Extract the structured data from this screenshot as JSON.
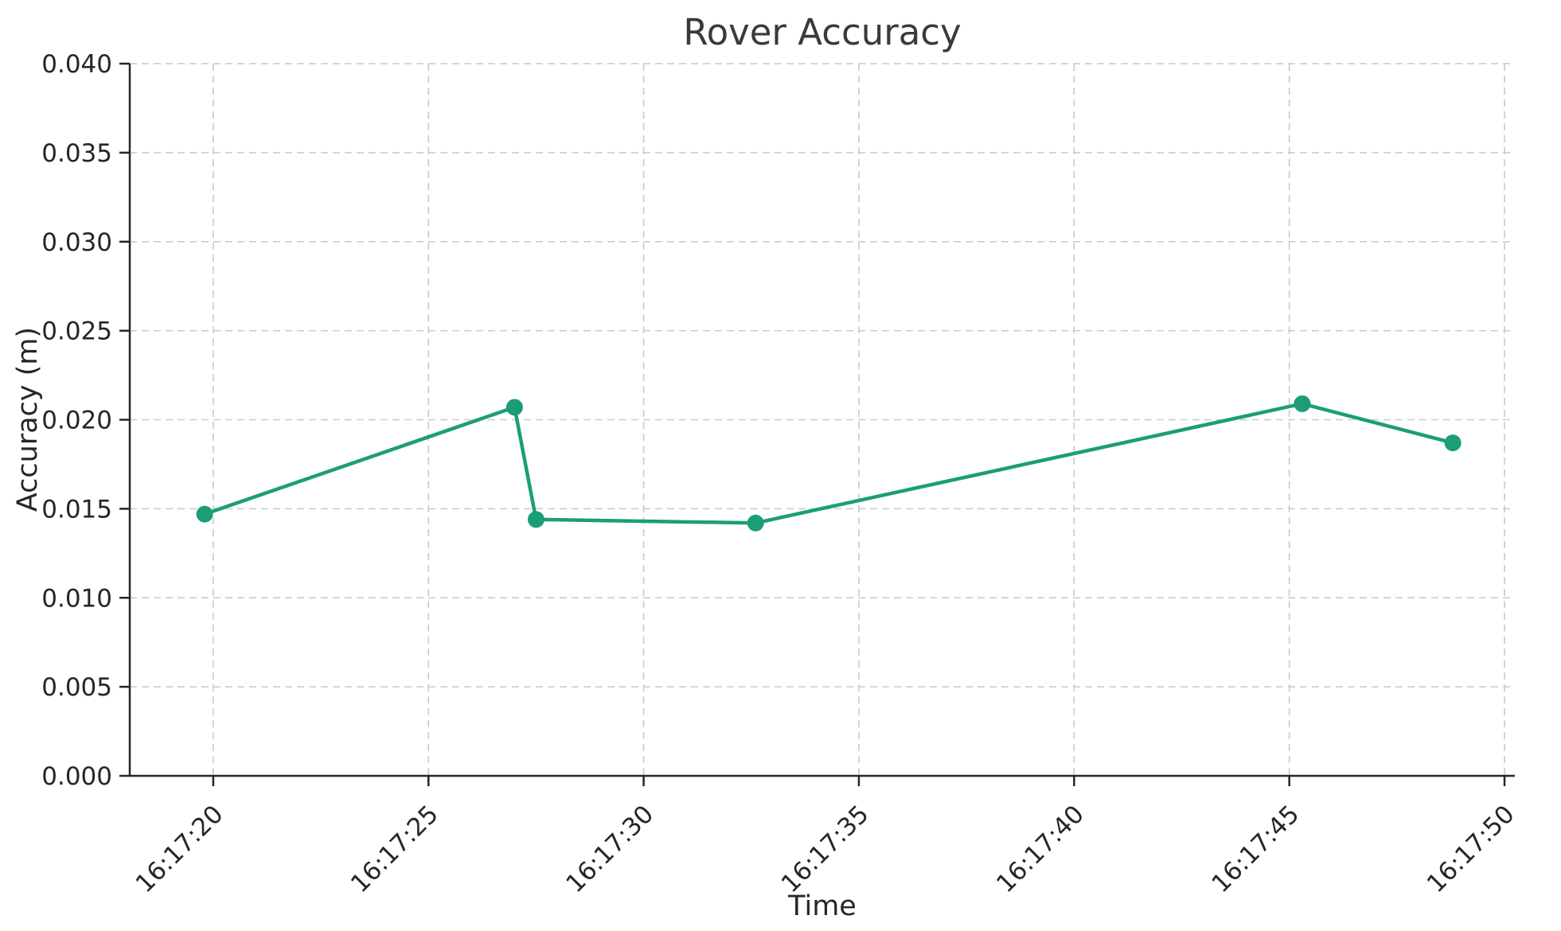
{
  "chart_data": {
    "type": "line",
    "title": "Rover Accuracy",
    "xlabel": "Time",
    "ylabel": "Accuracy (m)",
    "legend_position": "none",
    "grid": true,
    "grid_style": "dashed",
    "ylim": [
      0.0,
      0.04
    ],
    "y_ticks": [
      0.0,
      0.005,
      0.01,
      0.015,
      0.02,
      0.025,
      0.03,
      0.035,
      0.04
    ],
    "y_tick_decimals": 3,
    "xlim_seconds": [
      18.06,
      50.24
    ],
    "x_ticks": [
      {
        "label": "16:17:20",
        "seconds": 20
      },
      {
        "label": "16:17:25",
        "seconds": 25
      },
      {
        "label": "16:17:30",
        "seconds": 30
      },
      {
        "label": "16:17:35",
        "seconds": 35
      },
      {
        "label": "16:17:40",
        "seconds": 40
      },
      {
        "label": "16:17:45",
        "seconds": 45
      },
      {
        "label": "16:17:50",
        "seconds": 50
      }
    ],
    "series": [
      {
        "name": "Accuracy",
        "color": "#1b9e77",
        "marker": "circle",
        "points": [
          {
            "time": "16:17:19.8",
            "seconds": 19.8,
            "value": 0.0147
          },
          {
            "time": "16:17:27.0",
            "seconds": 27.0,
            "value": 0.0207
          },
          {
            "time": "16:17:27.5",
            "seconds": 27.5,
            "value": 0.0144
          },
          {
            "time": "16:17:32.6",
            "seconds": 32.6,
            "value": 0.0142
          },
          {
            "time": "16:17:45.3",
            "seconds": 45.3,
            "value": 0.0209
          },
          {
            "time": "16:17:48.8",
            "seconds": 48.8,
            "value": 0.0187
          }
        ]
      }
    ],
    "colors": {
      "line": "#1b9e77",
      "grid": "#c9c9c9",
      "spine": "#262626",
      "tick_text": "#262626",
      "title_text": "#3a3a3a"
    }
  }
}
